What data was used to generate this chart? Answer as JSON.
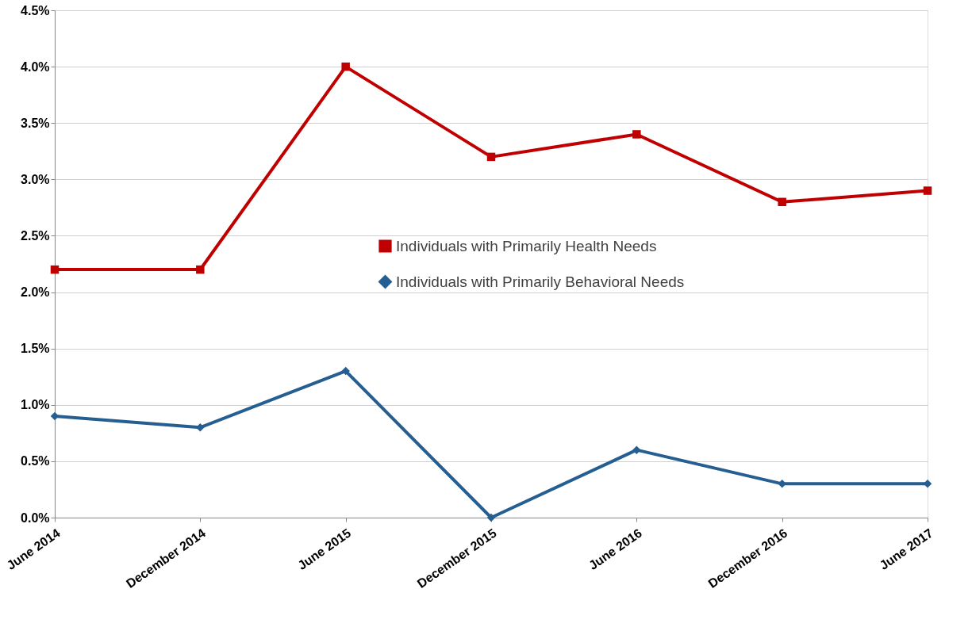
{
  "chart_data": {
    "type": "line",
    "categories": [
      "June 2014",
      "December 2014",
      "June 2015",
      "December 2015",
      "June 2016",
      "December 2016",
      "June 2017"
    ],
    "series": [
      {
        "name": "Individuals with Primarily Health Needs",
        "color": "#c00000",
        "marker": "square",
        "values": [
          2.2,
          2.2,
          4.0,
          3.2,
          3.4,
          2.8,
          2.9
        ]
      },
      {
        "name": "Individuals with Primarily Behavioral Needs",
        "color": "#255e91",
        "marker": "diamond",
        "values": [
          0.9,
          0.8,
          1.3,
          0.0,
          0.6,
          0.3,
          0.3
        ]
      }
    ],
    "ylim": [
      0,
      4.5
    ],
    "yticks": [
      {
        "value": 0,
        "label": "0.0%"
      },
      {
        "value": 0.5,
        "label": "0.5%"
      },
      {
        "value": 1,
        "label": "1.0%"
      },
      {
        "value": 1.5,
        "label": "1.5%"
      },
      {
        "value": 2,
        "label": "2.0%"
      },
      {
        "value": 2.5,
        "label": "2.5%"
      },
      {
        "value": 3,
        "label": "3.0%"
      },
      {
        "value": 3.5,
        "label": "3.5%"
      },
      {
        "value": 4,
        "label": "4.0%"
      },
      {
        "value": 4.5,
        "label": "4.5%"
      }
    ],
    "grid": "y",
    "legend": "center",
    "line_style": "solid"
  }
}
